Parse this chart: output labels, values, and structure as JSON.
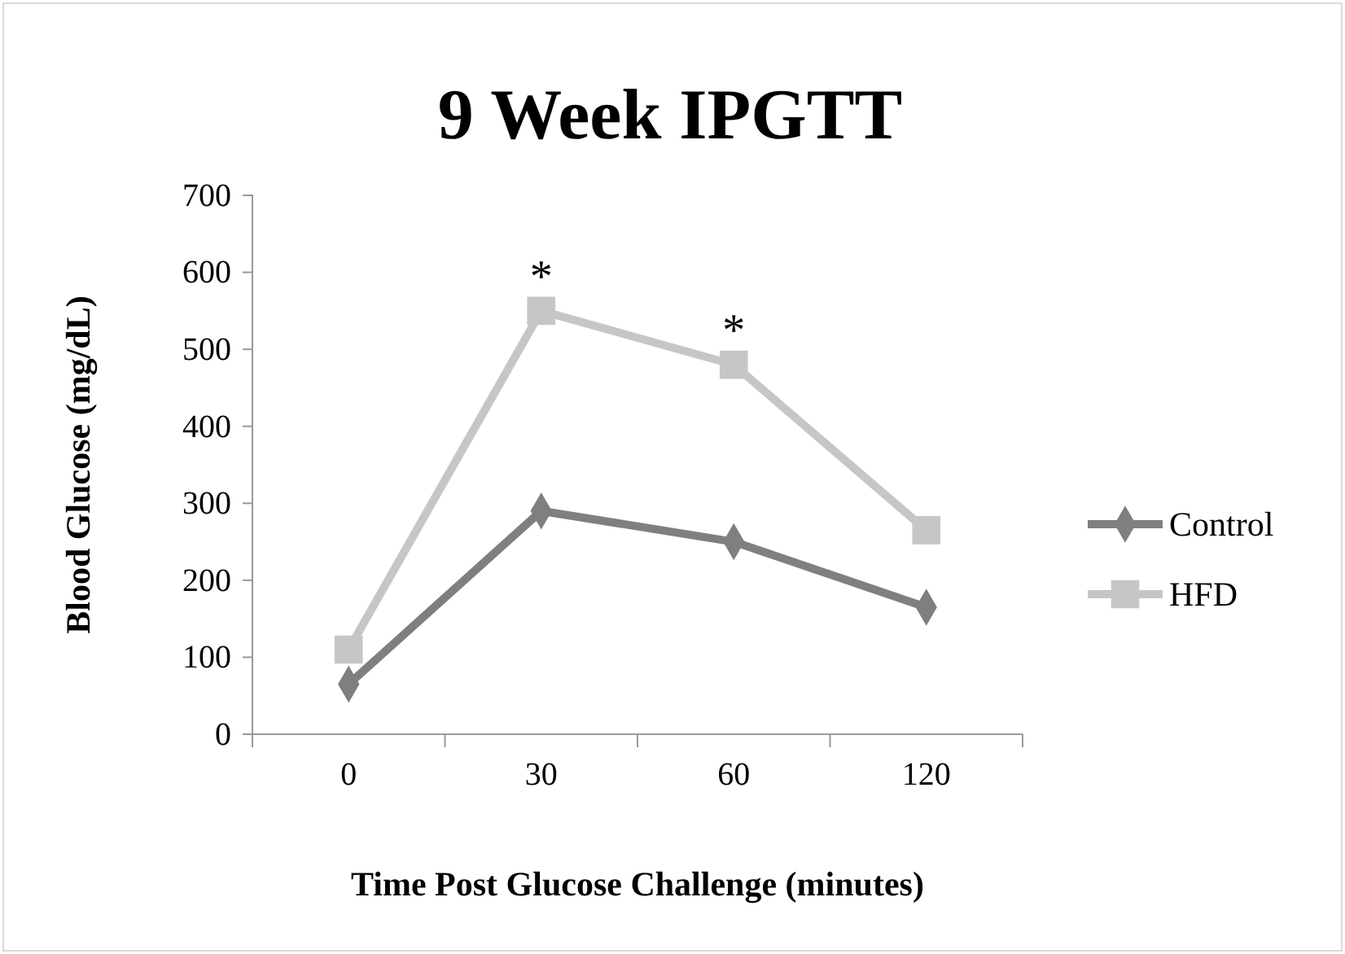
{
  "chart_data": {
    "type": "line",
    "title": "9 Week IPGTT",
    "xlabel": "Time Post Glucose Challenge (minutes)",
    "ylabel": "Blood Glucose (mg/dL)",
    "categories": [
      "0",
      "30",
      "60",
      "120"
    ],
    "series": [
      {
        "name": "Control",
        "color": "#7f7f7f",
        "marker": "diamond",
        "values": [
          65,
          290,
          250,
          165
        ]
      },
      {
        "name": "HFD",
        "color": "#c6c6c6",
        "marker": "square",
        "values": [
          110,
          550,
          480,
          265
        ]
      }
    ],
    "ylim": [
      0,
      700
    ],
    "yticks": [
      0,
      100,
      200,
      300,
      400,
      500,
      600,
      700
    ],
    "grid": false,
    "legend": "right",
    "line_style": "solid",
    "annotations": [
      {
        "text": "*",
        "x": "30",
        "y": 550
      },
      {
        "text": "*",
        "x": "60",
        "y": 480
      }
    ]
  }
}
